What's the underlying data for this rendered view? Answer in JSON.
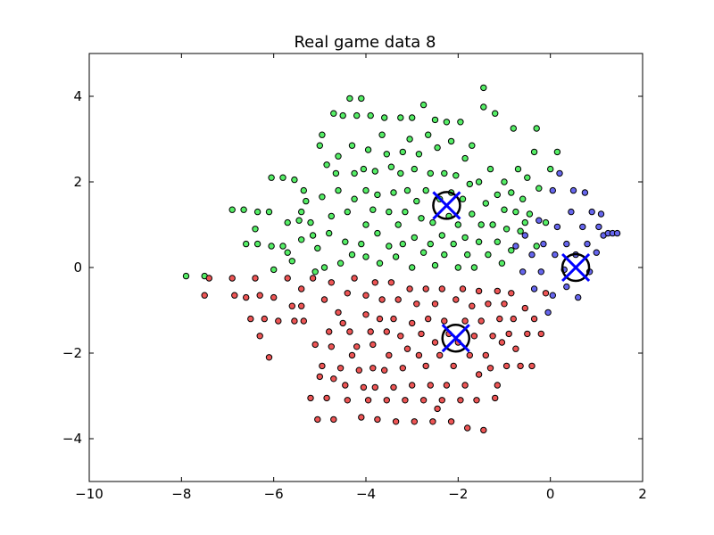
{
  "chart_data": {
    "type": "scatter",
    "title": "Real game data 8",
    "xlabel": "",
    "ylabel": "",
    "xlim": [
      -10,
      2
    ],
    "ylim": [
      -5,
      5
    ],
    "xticks": [
      -10,
      -8,
      -6,
      -4,
      -2,
      0,
      2
    ],
    "yticks": [
      -4,
      -2,
      0,
      2,
      4
    ],
    "xtick_labels": [
      "−10",
      "−8",
      "−6",
      "−4",
      "−2",
      "0",
      "2"
    ],
    "ytick_labels": [
      "−4",
      "−2",
      "0",
      "2",
      "4"
    ],
    "grid": false,
    "legend": "none",
    "colors": {
      "green": "#55ee66",
      "blue": "#6666ee",
      "red": "#ee5555",
      "centroid_circle": "#000000",
      "centroid_x": "#0000ff"
    },
    "series": [
      {
        "color": "green",
        "points": [
          [
            -7.9,
            -0.2
          ],
          [
            -7.5,
            -0.2
          ],
          [
            -6.9,
            1.35
          ],
          [
            -6.65,
            1.35
          ],
          [
            -6.4,
            0.9
          ],
          [
            -6.6,
            0.55
          ],
          [
            -6.35,
            0.55
          ],
          [
            -6.35,
            1.3
          ],
          [
            -6.1,
            1.3
          ],
          [
            -6.05,
            0.5
          ],
          [
            -6.05,
            2.1
          ],
          [
            -6.0,
            -0.05
          ],
          [
            -5.8,
            0.5
          ],
          [
            -5.8,
            2.1
          ],
          [
            -5.7,
            0.35
          ],
          [
            -5.7,
            1.05
          ],
          [
            -5.6,
            0.15
          ],
          [
            -5.55,
            2.05
          ],
          [
            -5.45,
            1.1
          ],
          [
            -5.4,
            0.65
          ],
          [
            -5.4,
            1.3
          ],
          [
            -5.35,
            1.8
          ],
          [
            -5.3,
            1.55
          ],
          [
            -5.2,
            1.05
          ],
          [
            -5.15,
            0.75
          ],
          [
            -5.1,
            -0.1
          ],
          [
            -5.05,
            0.45
          ],
          [
            -5.0,
            2.85
          ],
          [
            -4.95,
            1.65
          ],
          [
            -4.95,
            3.1
          ],
          [
            -4.9,
            0.0
          ],
          [
            -4.85,
            2.4
          ],
          [
            -4.8,
            0.8
          ],
          [
            -4.75,
            1.2
          ],
          [
            -4.7,
            3.6
          ],
          [
            -4.65,
            2.2
          ],
          [
            -4.6,
            1.8
          ],
          [
            -4.6,
            2.6
          ],
          [
            -4.55,
            0.1
          ],
          [
            -4.5,
            3.55
          ],
          [
            -4.45,
            0.6
          ],
          [
            -4.4,
            1.3
          ],
          [
            -4.35,
            3.95
          ],
          [
            -4.3,
            2.85
          ],
          [
            -4.3,
            0.3
          ],
          [
            -4.25,
            1.6
          ],
          [
            -4.25,
            2.2
          ],
          [
            -4.2,
            3.55
          ],
          [
            -4.1,
            3.95
          ],
          [
            -4.1,
            0.55
          ],
          [
            -4.05,
            2.3
          ],
          [
            -4.0,
            1.8
          ],
          [
            -4.0,
            1.0
          ],
          [
            -4.0,
            0.25
          ],
          [
            -3.95,
            2.75
          ],
          [
            -3.9,
            3.55
          ],
          [
            -3.85,
            1.35
          ],
          [
            -3.8,
            2.25
          ],
          [
            -3.75,
            1.7
          ],
          [
            -3.75,
            0.8
          ],
          [
            -3.7,
            0.1
          ],
          [
            -3.65,
            3.1
          ],
          [
            -3.6,
            3.5
          ],
          [
            -3.55,
            2.65
          ],
          [
            -3.5,
            1.3
          ],
          [
            -3.5,
            0.5
          ],
          [
            -3.45,
            2.35
          ],
          [
            -3.4,
            1.75
          ],
          [
            -3.35,
            0.25
          ],
          [
            -3.3,
            1.0
          ],
          [
            -3.25,
            3.5
          ],
          [
            -3.25,
            2.2
          ],
          [
            -3.2,
            0.55
          ],
          [
            -3.2,
            2.7
          ],
          [
            -3.15,
            1.3
          ],
          [
            -3.1,
            1.8
          ],
          [
            -3.05,
            3.0
          ],
          [
            -3.0,
            0.0
          ],
          [
            -3.0,
            3.5
          ],
          [
            -2.95,
            2.3
          ],
          [
            -2.95,
            0.7
          ],
          [
            -2.9,
            1.55
          ],
          [
            -2.85,
            2.65
          ],
          [
            -2.8,
            1.15
          ],
          [
            -2.75,
            3.8
          ],
          [
            -2.75,
            0.35
          ],
          [
            -2.7,
            1.8
          ],
          [
            -2.65,
            3.1
          ],
          [
            -2.6,
            0.55
          ],
          [
            -2.6,
            2.2
          ],
          [
            -2.55,
            1.05
          ],
          [
            -2.5,
            0.05
          ],
          [
            -2.5,
            3.45
          ],
          [
            -2.45,
            2.8
          ],
          [
            -2.4,
            1.6
          ],
          [
            -2.35,
            0.75
          ],
          [
            -2.3,
            2.2
          ],
          [
            -2.3,
            0.3
          ],
          [
            -2.25,
            3.4
          ],
          [
            -2.2,
            1.2
          ],
          [
            -2.15,
            2.95
          ],
          [
            -2.15,
            1.75
          ],
          [
            -2.1,
            0.55
          ],
          [
            -2.05,
            2.15
          ],
          [
            -2.0,
            0.0
          ],
          [
            -2.0,
            1.0
          ],
          [
            -1.95,
            3.4
          ],
          [
            -1.9,
            1.6
          ],
          [
            -1.85,
            0.7
          ],
          [
            -1.85,
            2.55
          ],
          [
            -1.8,
            0.3
          ],
          [
            -1.75,
            1.95
          ],
          [
            -1.7,
            2.85
          ],
          [
            -1.7,
            1.25
          ],
          [
            -1.65,
            0.0
          ],
          [
            -1.55,
            2.0
          ],
          [
            -1.55,
            0.6
          ],
          [
            -1.5,
            1.0
          ],
          [
            -1.45,
            3.75
          ],
          [
            -1.45,
            4.2
          ],
          [
            -1.4,
            1.5
          ],
          [
            -1.35,
            0.3
          ],
          [
            -1.3,
            2.3
          ],
          [
            -1.25,
            1.0
          ],
          [
            -1.2,
            3.6
          ],
          [
            -1.15,
            1.7
          ],
          [
            -1.15,
            0.6
          ],
          [
            -1.05,
            0.1
          ],
          [
            -1.0,
            1.35
          ],
          [
            -1.0,
            2.0
          ],
          [
            -0.95,
            0.9
          ],
          [
            -0.85,
            1.75
          ],
          [
            -0.85,
            0.4
          ],
          [
            -0.8,
            3.25
          ],
          [
            -0.75,
            1.3
          ],
          [
            -0.7,
            2.3
          ],
          [
            -0.65,
            0.85
          ],
          [
            -0.6,
            1.6
          ],
          [
            -0.55,
            1.05
          ],
          [
            -0.5,
            2.1
          ],
          [
            -0.45,
            1.25
          ],
          [
            -0.35,
            2.7
          ],
          [
            -0.3,
            3.25
          ],
          [
            -0.3,
            0.5
          ],
          [
            -0.25,
            1.85
          ],
          [
            -0.1,
            1.05
          ],
          [
            0.0,
            2.3
          ],
          [
            0.15,
            2.7
          ]
        ]
      },
      {
        "color": "blue",
        "points": [
          [
            -0.75,
            0.5
          ],
          [
            -0.6,
            -0.1
          ],
          [
            -0.55,
            0.75
          ],
          [
            -0.4,
            0.3
          ],
          [
            -0.35,
            -0.5
          ],
          [
            -0.25,
            1.1
          ],
          [
            -0.2,
            -0.1
          ],
          [
            -0.15,
            0.55
          ],
          [
            -0.05,
            -1.05
          ],
          [
            0.05,
            1.8
          ],
          [
            0.05,
            -0.65
          ],
          [
            0.1,
            0.3
          ],
          [
            0.15,
            0.95
          ],
          [
            0.2,
            2.2
          ],
          [
            0.3,
            -0.05
          ],
          [
            0.35,
            0.55
          ],
          [
            0.35,
            -0.45
          ],
          [
            0.45,
            1.3
          ],
          [
            0.5,
            1.8
          ],
          [
            0.55,
            0.3
          ],
          [
            0.6,
            -0.7
          ],
          [
            0.7,
            0.95
          ],
          [
            0.75,
            1.75
          ],
          [
            0.8,
            0.55
          ],
          [
            0.85,
            -0.1
          ],
          [
            0.9,
            1.3
          ],
          [
            1.0,
            0.35
          ],
          [
            1.05,
            0.95
          ],
          [
            1.1,
            1.25
          ],
          [
            1.15,
            0.75
          ],
          [
            1.25,
            0.8
          ],
          [
            1.35,
            0.8
          ],
          [
            1.45,
            0.8
          ]
        ]
      },
      {
        "color": "red",
        "points": [
          [
            -7.5,
            -0.65
          ],
          [
            -7.4,
            -0.25
          ],
          [
            -6.9,
            -0.25
          ],
          [
            -6.85,
            -0.65
          ],
          [
            -6.6,
            -0.7
          ],
          [
            -6.5,
            -1.2
          ],
          [
            -6.4,
            -0.25
          ],
          [
            -6.3,
            -0.65
          ],
          [
            -6.3,
            -1.6
          ],
          [
            -6.2,
            -1.2
          ],
          [
            -6.1,
            -2.1
          ],
          [
            -6.0,
            -0.7
          ],
          [
            -5.9,
            -1.25
          ],
          [
            -5.7,
            -0.25
          ],
          [
            -5.6,
            -0.9
          ],
          [
            -5.55,
            -1.25
          ],
          [
            -5.4,
            -0.5
          ],
          [
            -5.4,
            -0.9
          ],
          [
            -5.35,
            -1.25
          ],
          [
            -5.2,
            -3.05
          ],
          [
            -5.15,
            -0.25
          ],
          [
            -5.1,
            -1.8
          ],
          [
            -5.05,
            -3.55
          ],
          [
            -5.0,
            -2.55
          ],
          [
            -4.95,
            -2.3
          ],
          [
            -4.9,
            -0.75
          ],
          [
            -4.85,
            -3.05
          ],
          [
            -4.8,
            -1.5
          ],
          [
            -4.75,
            -0.35
          ],
          [
            -4.75,
            -1.85
          ],
          [
            -4.7,
            -2.6
          ],
          [
            -4.7,
            -3.55
          ],
          [
            -4.6,
            -1.05
          ],
          [
            -4.55,
            -2.35
          ],
          [
            -4.5,
            -1.3
          ],
          [
            -4.45,
            -2.75
          ],
          [
            -4.4,
            -0.6
          ],
          [
            -4.4,
            -3.1
          ],
          [
            -4.35,
            -1.5
          ],
          [
            -4.3,
            -2.05
          ],
          [
            -4.25,
            -0.25
          ],
          [
            -4.2,
            -1.85
          ],
          [
            -4.15,
            -2.4
          ],
          [
            -4.1,
            -3.5
          ],
          [
            -4.05,
            -2.8
          ],
          [
            -4.0,
            -1.1
          ],
          [
            -4.0,
            -0.65
          ],
          [
            -3.95,
            -3.1
          ],
          [
            -3.9,
            -1.5
          ],
          [
            -3.85,
            -2.35
          ],
          [
            -3.85,
            -1.8
          ],
          [
            -3.8,
            -0.35
          ],
          [
            -3.8,
            -2.8
          ],
          [
            -3.75,
            -3.55
          ],
          [
            -3.7,
            -1.2
          ],
          [
            -3.65,
            -0.75
          ],
          [
            -3.6,
            -2.4
          ],
          [
            -3.55,
            -1.5
          ],
          [
            -3.55,
            -3.1
          ],
          [
            -3.5,
            -2.05
          ],
          [
            -3.45,
            -0.35
          ],
          [
            -3.4,
            -1.2
          ],
          [
            -3.4,
            -2.8
          ],
          [
            -3.35,
            -3.6
          ],
          [
            -3.3,
            -0.75
          ],
          [
            -3.25,
            -1.6
          ],
          [
            -3.2,
            -2.35
          ],
          [
            -3.15,
            -3.1
          ],
          [
            -3.1,
            -1.9
          ],
          [
            -3.05,
            -0.5
          ],
          [
            -3.0,
            -1.3
          ],
          [
            -3.0,
            -2.75
          ],
          [
            -2.95,
            -3.6
          ],
          [
            -2.9,
            -0.85
          ],
          [
            -2.85,
            -2.05
          ],
          [
            -2.8,
            -1.55
          ],
          [
            -2.75,
            -3.1
          ],
          [
            -2.7,
            -0.5
          ],
          [
            -2.7,
            -2.3
          ],
          [
            -2.65,
            -1.2
          ],
          [
            -2.6,
            -2.75
          ],
          [
            -2.55,
            -3.6
          ],
          [
            -2.5,
            -1.75
          ],
          [
            -2.5,
            -0.85
          ],
          [
            -2.45,
            -3.3
          ],
          [
            -2.4,
            -2.05
          ],
          [
            -2.35,
            -0.5
          ],
          [
            -2.35,
            -3.1
          ],
          [
            -2.3,
            -1.25
          ],
          [
            -2.25,
            -2.75
          ],
          [
            -2.2,
            -1.55
          ],
          [
            -2.15,
            -3.6
          ],
          [
            -2.1,
            -2.3
          ],
          [
            -2.05,
            -0.75
          ],
          [
            -2.0,
            -1.75
          ],
          [
            -1.95,
            -3.1
          ],
          [
            -1.9,
            -0.5
          ],
          [
            -1.85,
            -2.75
          ],
          [
            -1.85,
            -1.25
          ],
          [
            -1.8,
            -3.75
          ],
          [
            -1.75,
            -2.05
          ],
          [
            -1.7,
            -0.9
          ],
          [
            -1.65,
            -1.6
          ],
          [
            -1.6,
            -3.1
          ],
          [
            -1.55,
            -0.55
          ],
          [
            -1.55,
            -2.5
          ],
          [
            -1.5,
            -1.25
          ],
          [
            -1.45,
            -3.8
          ],
          [
            -1.4,
            -2.05
          ],
          [
            -1.35,
            -0.85
          ],
          [
            -1.3,
            -2.35
          ],
          [
            -1.25,
            -1.6
          ],
          [
            -1.2,
            -3.05
          ],
          [
            -1.15,
            -0.55
          ],
          [
            -1.15,
            -2.75
          ],
          [
            -1.1,
            -1.2
          ],
          [
            -1.05,
            -1.75
          ],
          [
            -1.0,
            -0.85
          ],
          [
            -0.95,
            -2.3
          ],
          [
            -0.9,
            -1.55
          ],
          [
            -0.85,
            -0.6
          ],
          [
            -0.8,
            -1.2
          ],
          [
            -0.75,
            -1.9
          ],
          [
            -0.65,
            -2.3
          ],
          [
            -0.55,
            -0.95
          ],
          [
            -0.5,
            -1.55
          ],
          [
            -0.4,
            -2.3
          ],
          [
            -0.35,
            -1.2
          ],
          [
            -0.2,
            -1.55
          ],
          [
            -0.1,
            -0.6
          ]
        ]
      }
    ],
    "centroids": [
      {
        "x": -2.25,
        "y": 1.45
      },
      {
        "x": 0.55,
        "y": 0.0
      },
      {
        "x": -2.05,
        "y": -1.65
      }
    ]
  }
}
